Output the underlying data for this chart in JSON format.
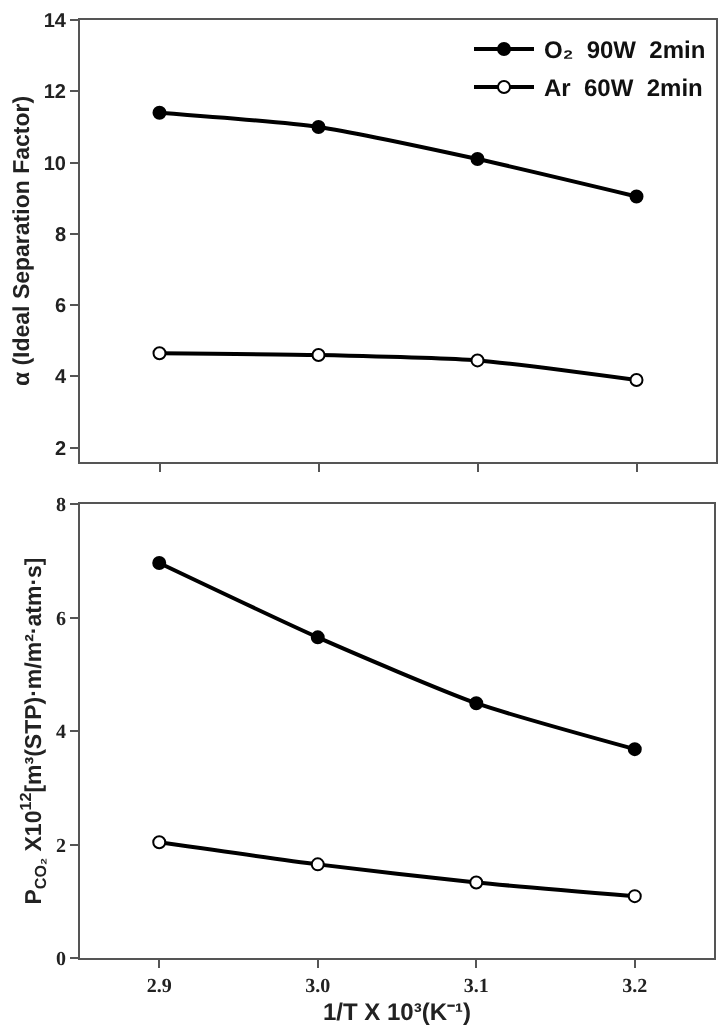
{
  "chart_data": [
    {
      "type": "line",
      "ylabel": "α (Ideal Separation Factor)",
      "x": [
        2.9,
        3.0,
        3.1,
        3.2
      ],
      "xlim": [
        2.85,
        3.25
      ],
      "xticks": [
        {
          "value": 2.9,
          "label": null
        },
        {
          "value": 3,
          "label": null
        },
        {
          "value": 3.1,
          "label": null
        },
        {
          "value": 3.2,
          "label": null
        }
      ],
      "ylim": [
        1.6,
        14
      ],
      "yticks": [
        2,
        4,
        6,
        8,
        10,
        12,
        14
      ],
      "tick_labels": "y",
      "marker": "circle",
      "legend": "top right",
      "series": [
        {
          "name": "O₂  90W  2min",
          "color": "#000000",
          "values": [
            11.4,
            11.0,
            10.1,
            9.05
          ]
        },
        {
          "name": "Ar  60W  2min",
          "color": "#000000",
          "values": [
            4.65,
            4.6,
            4.45,
            3.9
          ]
        }
      ]
    },
    {
      "type": "line",
      "xlabel": "1/T X 10³(K⁻¹)",
      "ylabel": "P$_{CO₂}$ X10$^{12}$[m³(STP)·m/m²·atm·s]",
      "x": [
        2.9,
        3.0,
        3.1,
        3.2
      ],
      "xlim": [
        2.85,
        3.25
      ],
      "xticks": [
        {
          "value": 2.9,
          "label": "2.9"
        },
        {
          "value": 3,
          "label": "3.0"
        },
        {
          "value": 3.1,
          "label": "3.1"
        },
        {
          "value": 3.2,
          "label": "3.2"
        }
      ],
      "ylim": [
        0,
        8
      ],
      "yticks": [
        0,
        2,
        4,
        6,
        8
      ],
      "marker": "circle",
      "series": [
        {
          "color": "#000000",
          "values": [
            6.96,
            5.65,
            4.49,
            3.68
          ]
        },
        {
          "color": "#000000",
          "values": [
            2.04,
            1.65,
            1.33,
            1.09
          ]
        }
      ]
    }
  ]
}
